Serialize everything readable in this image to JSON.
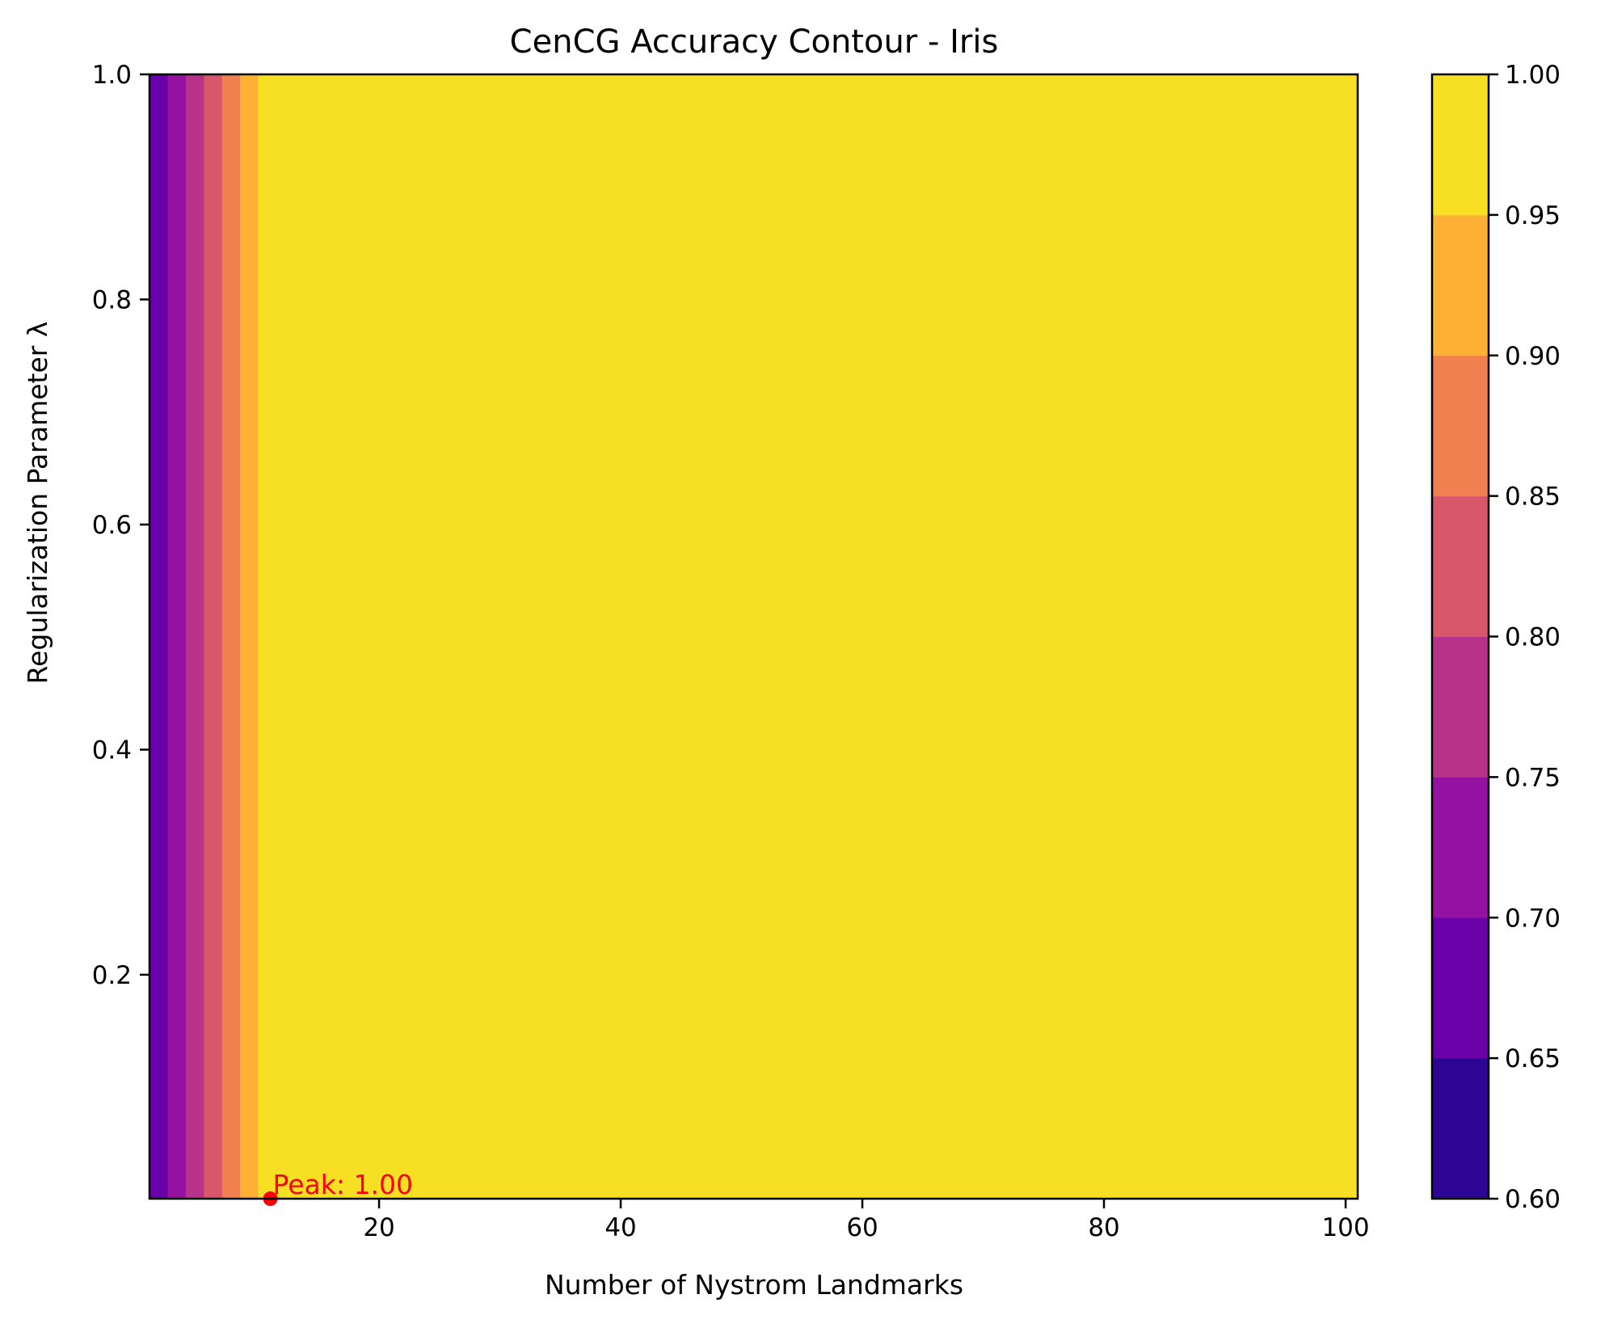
{
  "chart_data": {
    "type": "contour",
    "title": "CenCG Accuracy Contour - Iris",
    "xlabel": "Number of Nystrom Landmarks",
    "ylabel": "Regularization Parameter λ",
    "xlim": [
      1,
      101
    ],
    "ylim": [
      0.001,
      1.0
    ],
    "x_ticks": [
      20,
      40,
      60,
      80,
      100
    ],
    "x_tick_labels": [
      "20",
      "40",
      "60",
      "80",
      "100"
    ],
    "y_ticks": [
      0.2,
      0.4,
      0.6,
      0.8,
      1.0
    ],
    "y_tick_labels": [
      "0.2",
      "0.4",
      "0.6",
      "0.8",
      "1.0"
    ],
    "colormap": "plasma",
    "grid": false,
    "levels": [
      0.6,
      0.65,
      0.7,
      0.75,
      0.8,
      0.85,
      0.9,
      0.95,
      1.0
    ],
    "level_colors": [
      "#2d0594",
      "#6900a8",
      "#9511a1",
      "#b93289",
      "#d8576b",
      "#f0804f",
      "#feb034",
      "#f7e024"
    ],
    "colorbar_tick_labels": [
      "0.60",
      "0.65",
      "0.70",
      "0.75",
      "0.80",
      "0.85",
      "0.90",
      "0.95",
      "1.00"
    ],
    "bands_along_x": [
      {
        "x_from": 1,
        "x_to": 2.5,
        "band": 1
      },
      {
        "x_from": 2.5,
        "x_to": 4,
        "band": 2
      },
      {
        "x_from": 4,
        "x_to": 5.5,
        "band": 3
      },
      {
        "x_from": 5.5,
        "x_to": 7,
        "band": 4
      },
      {
        "x_from": 7,
        "x_to": 8.5,
        "band": 5
      },
      {
        "x_from": 8.5,
        "x_to": 10,
        "band": 6
      },
      {
        "x_from": 10,
        "x_to": 101,
        "band": 7
      }
    ],
    "peak": {
      "x": 11,
      "y": 0.001,
      "value": 1.0,
      "label": "Peak: 1.00",
      "color": "#ff0000"
    }
  }
}
